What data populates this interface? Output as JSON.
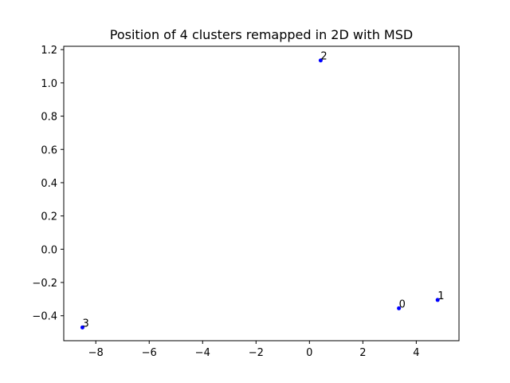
{
  "chart_data": {
    "type": "scatter",
    "title": "Position of 4 clusters remapped in 2D with MSD",
    "xlabel": "",
    "ylabel": "",
    "xlim": [
      -9.2,
      5.6
    ],
    "ylim": [
      -0.55,
      1.22
    ],
    "grid": false,
    "point_color": "#0000ff",
    "x_ticks": [
      -8,
      -6,
      -4,
      -2,
      0,
      2,
      4
    ],
    "x_tick_labels": [
      "−8",
      "−6",
      "−4",
      "−2",
      "0",
      "2",
      "4"
    ],
    "y_ticks": [
      -0.4,
      -0.2,
      0.0,
      0.2,
      0.4,
      0.6,
      0.8,
      1.0,
      1.2
    ],
    "y_tick_labels": [
      "−0.4",
      "−0.2",
      "0.0",
      "0.2",
      "0.4",
      "0.6",
      "0.8",
      "1.0",
      "1.2"
    ],
    "points": [
      {
        "label": "0",
        "x": 3.35,
        "y": -0.355
      },
      {
        "label": "1",
        "x": 4.8,
        "y": -0.305
      },
      {
        "label": "2",
        "x": 0.42,
        "y": 1.135
      },
      {
        "label": "3",
        "x": -8.5,
        "y": -0.47
      }
    ]
  }
}
